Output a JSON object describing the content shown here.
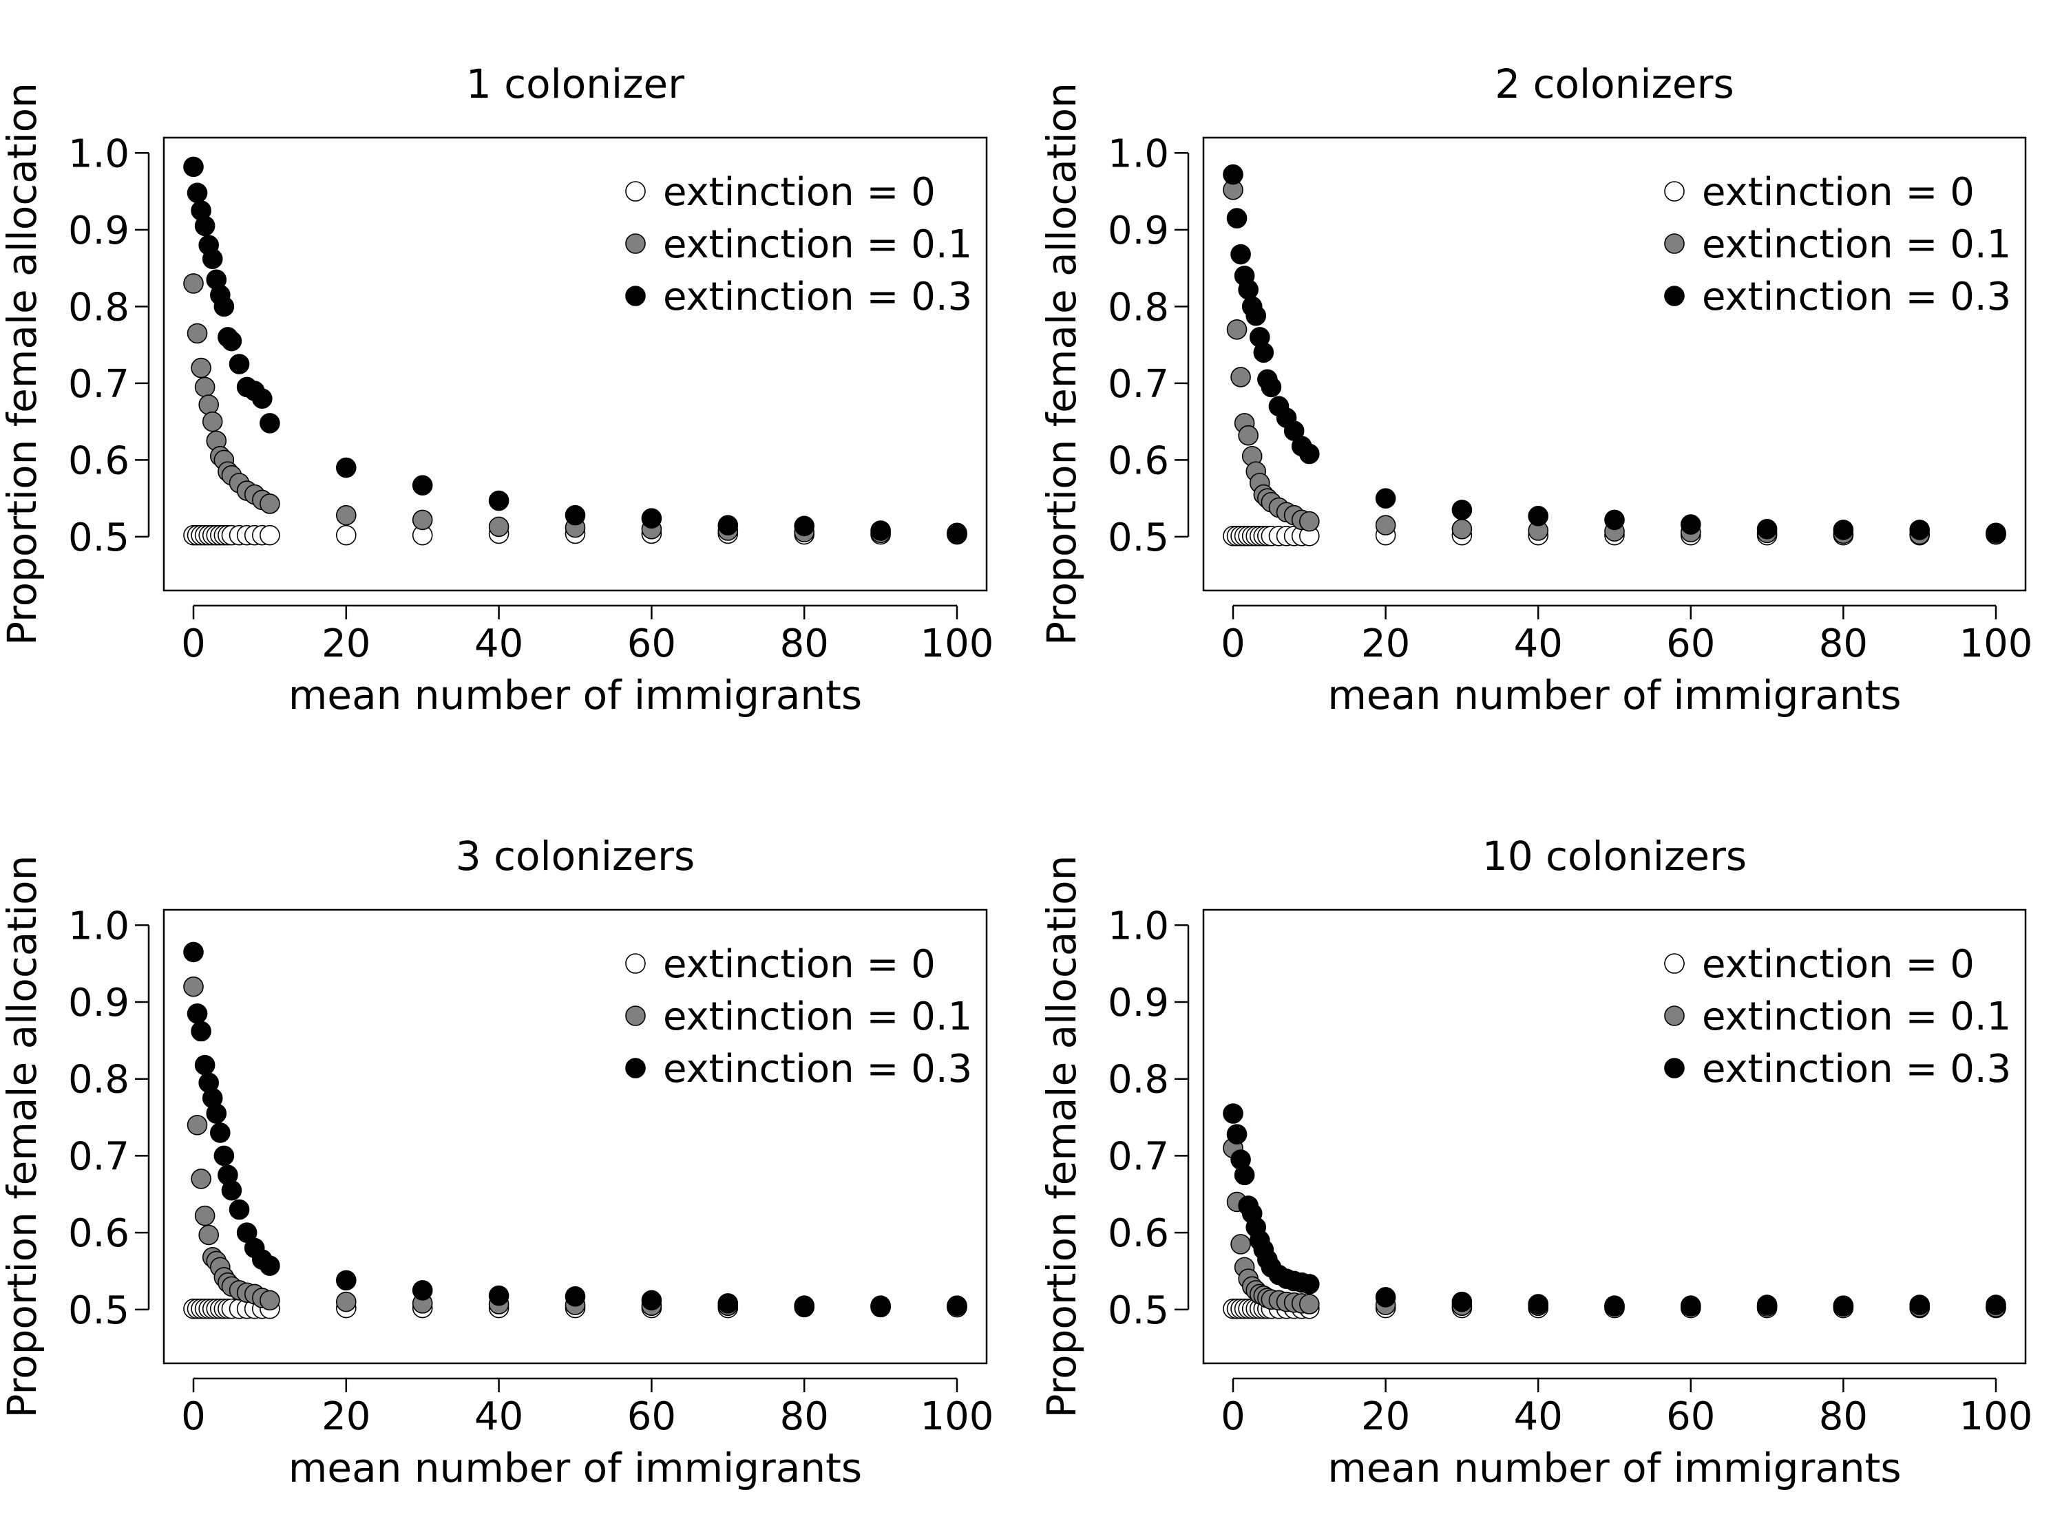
{
  "chart_data": [
    {
      "type": "scatter",
      "title": "1 colonizer",
      "xlabel": "mean number of immigrants",
      "ylabel": "Proportion female allocation",
      "xlim": [
        0,
        100
      ],
      "ylim": [
        0.43,
        1.02
      ],
      "xticks": [
        "0",
        "20",
        "40",
        "60",
        "80",
        "100"
      ],
      "yticks": [
        "0.5",
        "0.6",
        "0.7",
        "0.8",
        "0.9",
        "1.0"
      ],
      "legend_position": "top-right",
      "grid": false,
      "series": [
        {
          "name": "extinction = 0",
          "color": "#ffffff",
          "x": [
            0,
            0.5,
            1,
            1.5,
            2,
            2.5,
            3,
            3.5,
            4,
            4.5,
            5,
            6,
            7,
            8,
            9,
            10,
            20,
            30,
            40,
            50,
            60,
            70,
            80,
            90,
            100
          ],
          "y": [
            0.502,
            0.502,
            0.502,
            0.502,
            0.502,
            0.502,
            0.502,
            0.502,
            0.502,
            0.502,
            0.502,
            0.502,
            0.502,
            0.502,
            0.502,
            0.502,
            0.502,
            0.502,
            0.504,
            0.504,
            0.504,
            0.504,
            0.503,
            0.503,
            0.503
          ]
        },
        {
          "name": "extinction = 0.1",
          "color": "#808080",
          "x": [
            0,
            0.5,
            1,
            1.5,
            2,
            2.5,
            3,
            3.5,
            4,
            4.5,
            5,
            6,
            7,
            8,
            9,
            10,
            20,
            30,
            40,
            50,
            60,
            70,
            80,
            90,
            100
          ],
          "y": [
            0.83,
            0.765,
            0.72,
            0.695,
            0.672,
            0.65,
            0.625,
            0.605,
            0.6,
            0.585,
            0.58,
            0.57,
            0.56,
            0.555,
            0.548,
            0.543,
            0.528,
            0.522,
            0.513,
            0.512,
            0.51,
            0.508,
            0.506,
            0.505,
            0.504
          ]
        },
        {
          "name": "extinction = 0.3",
          "color": "#000000",
          "x": [
            0,
            0.5,
            1,
            1.5,
            2,
            2.5,
            3,
            3.5,
            4,
            4.5,
            5,
            6,
            7,
            8,
            9,
            10,
            20,
            30,
            40,
            50,
            60,
            70,
            80,
            90,
            100
          ],
          "y": [
            0.982,
            0.948,
            0.925,
            0.905,
            0.88,
            0.862,
            0.835,
            0.815,
            0.8,
            0.76,
            0.755,
            0.725,
            0.695,
            0.69,
            0.68,
            0.648,
            0.59,
            0.567,
            0.547,
            0.528,
            0.524,
            0.515,
            0.514,
            0.508,
            0.505
          ]
        }
      ]
    },
    {
      "type": "scatter",
      "title": "2 colonizers",
      "xlabel": "mean number of immigrants",
      "ylabel": "Proportion female allocation",
      "xlim": [
        0,
        100
      ],
      "ylim": [
        0.43,
        1.02
      ],
      "xticks": [
        "0",
        "20",
        "40",
        "60",
        "80",
        "100"
      ],
      "yticks": [
        "0.5",
        "0.6",
        "0.7",
        "0.8",
        "0.9",
        "1.0"
      ],
      "legend_position": "top-right",
      "grid": false,
      "series": [
        {
          "name": "extinction = 0",
          "color": "#ffffff",
          "x": [
            0,
            0.5,
            1,
            1.5,
            2,
            2.5,
            3,
            3.5,
            4,
            4.5,
            5,
            6,
            7,
            8,
            9,
            10,
            20,
            30,
            40,
            50,
            60,
            70,
            80,
            90,
            100
          ],
          "y": [
            0.501,
            0.501,
            0.501,
            0.501,
            0.501,
            0.501,
            0.501,
            0.501,
            0.501,
            0.501,
            0.501,
            0.501,
            0.501,
            0.501,
            0.501,
            0.501,
            0.502,
            0.502,
            0.502,
            0.502,
            0.502,
            0.502,
            0.502,
            0.502,
            0.503
          ]
        },
        {
          "name": "extinction = 0.1",
          "color": "#808080",
          "x": [
            0,
            0.5,
            1,
            1.5,
            2,
            2.5,
            3,
            3.5,
            4,
            4.5,
            5,
            6,
            7,
            8,
            9,
            10,
            20,
            30,
            40,
            50,
            60,
            70,
            80,
            90,
            100
          ],
          "y": [
            0.952,
            0.77,
            0.708,
            0.648,
            0.632,
            0.605,
            0.585,
            0.57,
            0.555,
            0.55,
            0.545,
            0.538,
            0.532,
            0.528,
            0.522,
            0.52,
            0.515,
            0.51,
            0.508,
            0.507,
            0.506,
            0.505,
            0.504,
            0.503,
            0.503
          ]
        },
        {
          "name": "extinction = 0.3",
          "color": "#000000",
          "x": [
            0,
            0.5,
            1,
            1.5,
            2,
            2.5,
            3,
            3.5,
            4,
            4.5,
            5,
            6,
            7,
            8,
            9,
            10,
            20,
            30,
            40,
            50,
            60,
            70,
            80,
            90,
            100
          ],
          "y": [
            0.972,
            0.915,
            0.868,
            0.84,
            0.822,
            0.8,
            0.788,
            0.76,
            0.74,
            0.705,
            0.695,
            0.67,
            0.655,
            0.638,
            0.618,
            0.608,
            0.55,
            0.535,
            0.527,
            0.522,
            0.516,
            0.51,
            0.509,
            0.509,
            0.505
          ]
        }
      ]
    },
    {
      "type": "scatter",
      "title": "3 colonizers",
      "xlabel": "mean number of immigrants",
      "ylabel": "Proportion female allocation",
      "xlim": [
        0,
        100
      ],
      "ylim": [
        0.43,
        1.02
      ],
      "xticks": [
        "0",
        "20",
        "40",
        "60",
        "80",
        "100"
      ],
      "yticks": [
        "0.5",
        "0.6",
        "0.7",
        "0.8",
        "0.9",
        "1.0"
      ],
      "legend_position": "top-right",
      "grid": false,
      "series": [
        {
          "name": "extinction = 0",
          "color": "#ffffff",
          "x": [
            0,
            0.5,
            1,
            1.5,
            2,
            2.5,
            3,
            3.5,
            4,
            4.5,
            5,
            6,
            7,
            8,
            9,
            10,
            20,
            30,
            40,
            50,
            60,
            70,
            80,
            90,
            100
          ],
          "y": [
            0.501,
            0.501,
            0.501,
            0.501,
            0.501,
            0.501,
            0.501,
            0.501,
            0.501,
            0.501,
            0.501,
            0.501,
            0.501,
            0.501,
            0.501,
            0.501,
            0.502,
            0.502,
            0.502,
            0.502,
            0.502,
            0.502,
            0.503,
            0.503,
            0.503
          ]
        },
        {
          "name": "extinction = 0.1",
          "color": "#808080",
          "x": [
            0,
            0.5,
            1,
            1.5,
            2,
            2.5,
            3,
            3.5,
            4,
            4.5,
            5,
            6,
            7,
            8,
            9,
            10,
            20,
            30,
            40,
            50,
            60,
            70,
            80,
            90,
            100
          ],
          "y": [
            0.92,
            0.74,
            0.67,
            0.622,
            0.597,
            0.568,
            0.563,
            0.555,
            0.542,
            0.535,
            0.53,
            0.525,
            0.522,
            0.52,
            0.515,
            0.512,
            0.51,
            0.508,
            0.507,
            0.506,
            0.505,
            0.505,
            0.504,
            0.504,
            0.503
          ]
        },
        {
          "name": "extinction = 0.3",
          "color": "#000000",
          "x": [
            0,
            0.5,
            1,
            1.5,
            2,
            2.5,
            3,
            3.5,
            4,
            4.5,
            5,
            6,
            7,
            8,
            9,
            10,
            20,
            30,
            40,
            50,
            60,
            70,
            80,
            90,
            100
          ],
          "y": [
            0.965,
            0.885,
            0.862,
            0.818,
            0.795,
            0.775,
            0.755,
            0.73,
            0.7,
            0.675,
            0.655,
            0.63,
            0.6,
            0.58,
            0.565,
            0.557,
            0.538,
            0.525,
            0.518,
            0.517,
            0.512,
            0.508,
            0.505,
            0.505,
            0.505
          ]
        }
      ]
    },
    {
      "type": "scatter",
      "title": "10 colonizers",
      "xlabel": "mean number of immigrants",
      "ylabel": "Proportion female allocation",
      "xlim": [
        0,
        100
      ],
      "ylim": [
        0.43,
        1.02
      ],
      "xticks": [
        "0",
        "20",
        "40",
        "60",
        "80",
        "100"
      ],
      "yticks": [
        "0.5",
        "0.6",
        "0.7",
        "0.8",
        "0.9",
        "1.0"
      ],
      "legend_position": "top-right",
      "grid": false,
      "series": [
        {
          "name": "extinction = 0",
          "color": "#ffffff",
          "x": [
            0,
            0.5,
            1,
            1.5,
            2,
            2.5,
            3,
            3.5,
            4,
            4.5,
            5,
            6,
            7,
            8,
            9,
            10,
            20,
            30,
            40,
            50,
            60,
            70,
            80,
            90,
            100
          ],
          "y": [
            0.501,
            0.501,
            0.501,
            0.501,
            0.501,
            0.501,
            0.501,
            0.501,
            0.501,
            0.501,
            0.501,
            0.501,
            0.501,
            0.501,
            0.501,
            0.501,
            0.502,
            0.502,
            0.502,
            0.502,
            0.502,
            0.502,
            0.502,
            0.502,
            0.502
          ]
        },
        {
          "name": "extinction = 0.1",
          "color": "#808080",
          "x": [
            0,
            0.5,
            1,
            1.5,
            2,
            2.5,
            3,
            3.5,
            4,
            4.5,
            5,
            6,
            7,
            8,
            9,
            10,
            20,
            30,
            40,
            50,
            60,
            70,
            80,
            90,
            100
          ],
          "y": [
            0.71,
            0.64,
            0.585,
            0.555,
            0.54,
            0.53,
            0.525,
            0.52,
            0.518,
            0.515,
            0.513,
            0.512,
            0.51,
            0.509,
            0.508,
            0.507,
            0.506,
            0.505,
            0.505,
            0.504,
            0.504,
            0.504,
            0.504,
            0.503,
            0.503
          ]
        },
        {
          "name": "extinction = 0.3",
          "color": "#000000",
          "x": [
            0,
            0.5,
            1,
            1.5,
            2,
            2.5,
            3,
            3.5,
            4,
            4.5,
            5,
            6,
            7,
            8,
            9,
            10,
            20,
            30,
            40,
            50,
            60,
            70,
            80,
            90,
            100
          ],
          "y": [
            0.755,
            0.728,
            0.695,
            0.675,
            0.635,
            0.625,
            0.607,
            0.59,
            0.578,
            0.565,
            0.555,
            0.545,
            0.54,
            0.537,
            0.535,
            0.533,
            0.516,
            0.51,
            0.507,
            0.505,
            0.505,
            0.506,
            0.505,
            0.506,
            0.506
          ]
        }
      ]
    }
  ]
}
